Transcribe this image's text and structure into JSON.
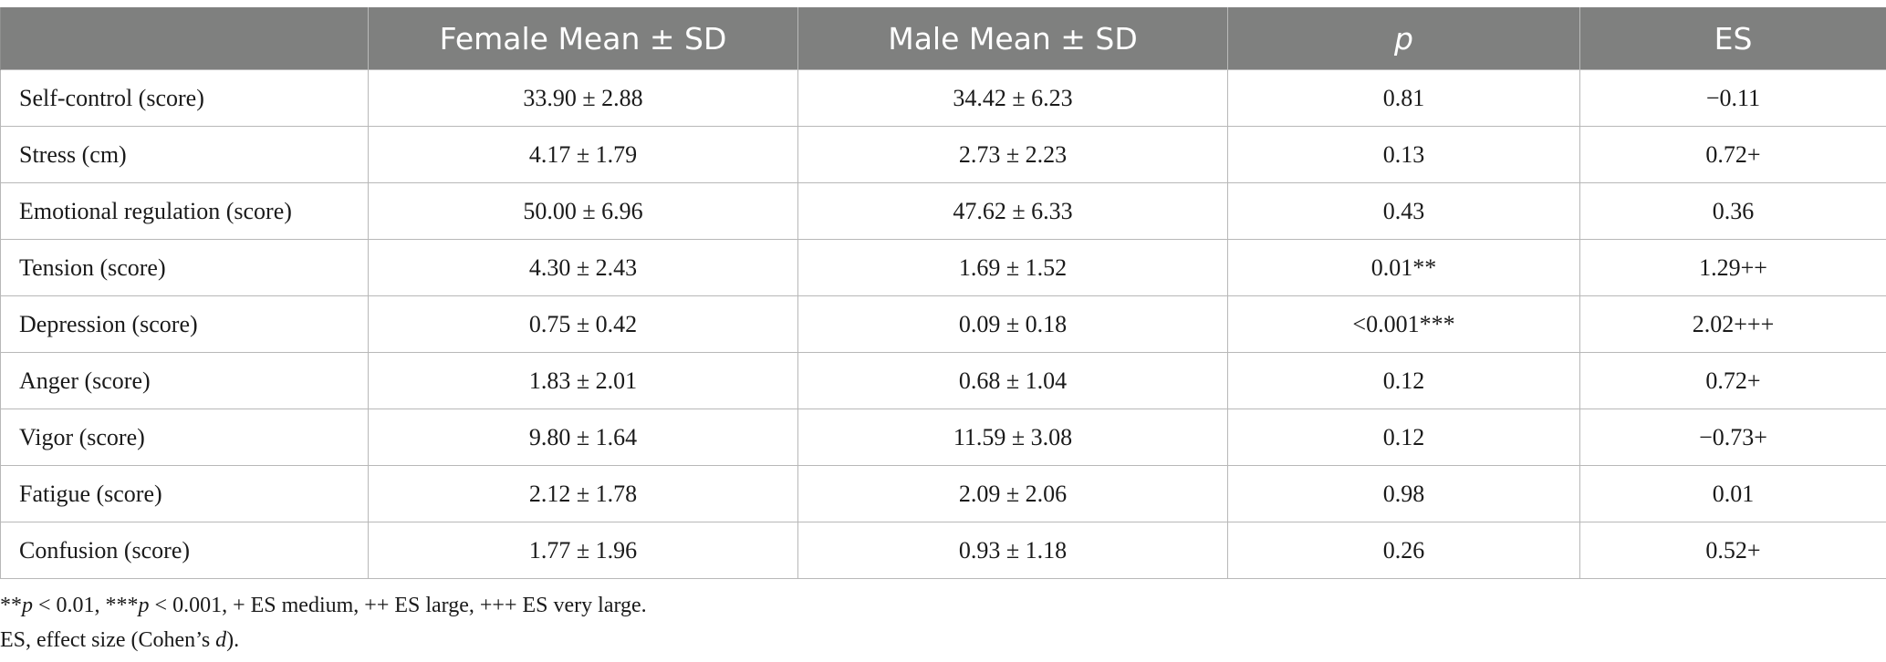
{
  "table": {
    "headers": [
      "",
      "Female Mean ± SD",
      "Male Mean ± SD",
      "p",
      "ES"
    ],
    "rows": [
      [
        "Self-control (score)",
        "33.90 ± 2.88",
        "34.42 ± 6.23",
        "0.81",
        "−0.11"
      ],
      [
        "Stress (cm)",
        "4.17 ± 1.79",
        "2.73 ± 2.23",
        "0.13",
        "0.72+"
      ],
      [
        "Emotional regulation (score)",
        "50.00 ± 6.96",
        "47.62 ± 6.33",
        "0.43",
        "0.36"
      ],
      [
        "Tension (score)",
        "4.30 ± 2.43",
        "1.69 ± 1.52",
        "0.01**",
        "1.29++"
      ],
      [
        "Depression (score)",
        "0.75 ± 0.42",
        "0.09 ± 0.18",
        "<0.001***",
        "2.02+++"
      ],
      [
        "Anger (score)",
        "1.83 ± 2.01",
        "0.68 ± 1.04",
        "0.12",
        "0.72+"
      ],
      [
        "Vigor (score)",
        "9.80 ± 1.64",
        "11.59 ± 3.08",
        "0.12",
        "−0.73+"
      ],
      [
        "Fatigue (score)",
        "2.12 ± 1.78",
        "2.09 ± 2.06",
        "0.98",
        "0.01"
      ],
      [
        "Confusion (score)",
        "1.77 ± 1.96",
        "0.93 ± 1.18",
        "0.26",
        "0.52+"
      ]
    ]
  },
  "footnotes": {
    "line1": {
      "a1": "**",
      "a2": "p",
      "a3": " < 0.01, ***",
      "a4": "p",
      "a5": " < 0.001, + ES medium, ++ ES large, +++ ES very large."
    },
    "line2": {
      "b1": "ES, effect size (Cohen’s ",
      "b2": "d",
      "b3": ")."
    }
  }
}
